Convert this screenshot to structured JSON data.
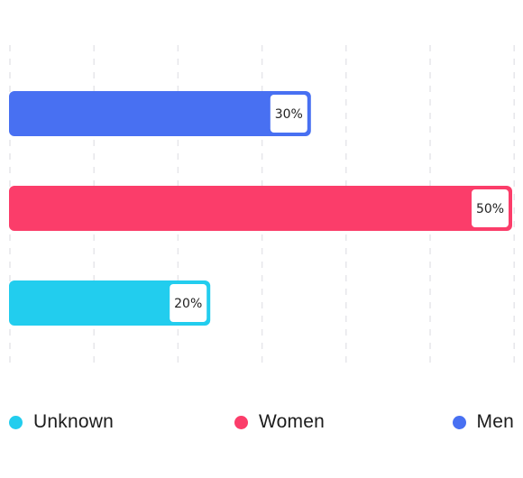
{
  "chart_data": {
    "type": "bar",
    "orientation": "horizontal",
    "categories": [
      "Men",
      "Women",
      "Unknown"
    ],
    "values": [
      30,
      50,
      20
    ],
    "data_labels": [
      "30%",
      "50%",
      "20%"
    ],
    "colors": [
      "#4870f2",
      "#fb3d6a",
      "#22cdee"
    ],
    "xlim": [
      0,
      50
    ],
    "grid": "vertical dashed",
    "legend_position": "bottom"
  },
  "legend": [
    {
      "label": "Unknown",
      "color": "#22cdee"
    },
    {
      "label": "Women",
      "color": "#fb3d6a"
    },
    {
      "label": "Men",
      "color": "#4870f2"
    }
  ]
}
